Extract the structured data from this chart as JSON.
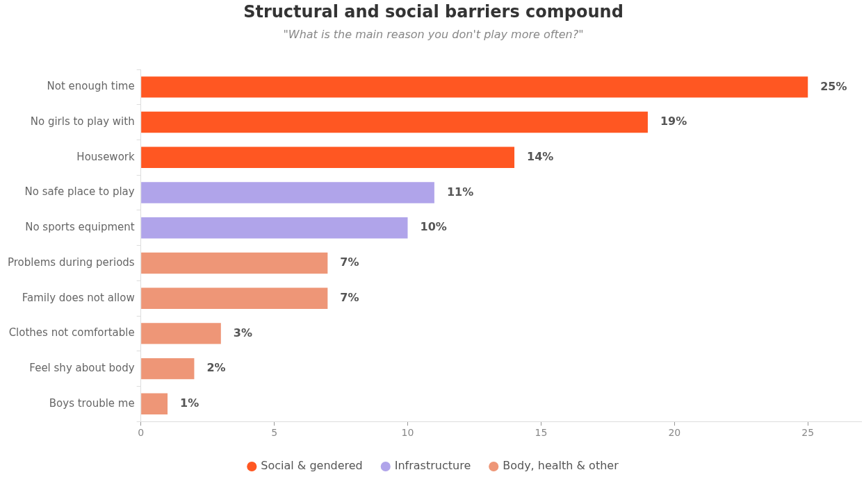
{
  "chart_data": {
    "type": "bar",
    "orientation": "horizontal",
    "stacked": true,
    "title": "Structural and social barriers compound",
    "subtitle": "\"What is the main reason you don't play more often?\"",
    "categories": [
      "Not enough time",
      "No girls to play with",
      "Housework",
      "No safe place to play",
      "No sports equipment",
      "Problems during periods",
      "Family does not allow",
      "Clothes not comfortable",
      "Feel shy about body",
      "Boys trouble me"
    ],
    "series": [
      {
        "name": "Social & gendered",
        "color": "#ff5722",
        "values": [
          25,
          19,
          14,
          null,
          null,
          null,
          null,
          null,
          null,
          null
        ],
        "value_labels": [
          "25%",
          "19%",
          "14%",
          null,
          null,
          null,
          null,
          null,
          null,
          null
        ]
      },
      {
        "name": "Infrastructure",
        "color": "#b0a4ea",
        "values": [
          null,
          null,
          null,
          11,
          10,
          null,
          null,
          null,
          null,
          null
        ],
        "value_labels": [
          null,
          null,
          null,
          "11%",
          "10%",
          null,
          null,
          null,
          null,
          null
        ]
      },
      {
        "name": "Body, health & other",
        "color": "#ee9677",
        "values": [
          null,
          null,
          null,
          null,
          null,
          7,
          7,
          3,
          2,
          1
        ],
        "value_labels": [
          null,
          null,
          null,
          null,
          null,
          "7%",
          "7%",
          "3%",
          "2%",
          "1%"
        ]
      }
    ],
    "xlim": [
      0,
      27
    ],
    "xticks": [
      0,
      5,
      10,
      15,
      20,
      25
    ],
    "grid": false,
    "legend": "bottom"
  }
}
